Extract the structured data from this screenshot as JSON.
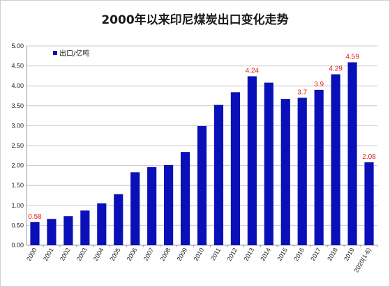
{
  "chart_data": {
    "type": "bar",
    "title": "2000年以来印尼煤炭出口变化走势",
    "xlabel": "",
    "ylabel": "",
    "ylim": [
      0,
      5.0
    ],
    "yticks": [
      "0.00",
      "0.50",
      "1.00",
      "1.50",
      "2.00",
      "2.50",
      "3.00",
      "3.50",
      "4.00",
      "4.50",
      "5.00"
    ],
    "grid": true,
    "legend_position": "top-left",
    "categories": [
      "2000",
      "2001",
      "2002",
      "2003",
      "2004",
      "2005",
      "2006",
      "2007",
      "2008",
      "2009",
      "2010",
      "2011",
      "2012",
      "2013",
      "2014",
      "2015",
      "2016",
      "2017",
      "2018",
      "2019",
      "2020(1-6)"
    ],
    "series": [
      {
        "name": "出口/亿吨",
        "color": "#0a10b8",
        "values": [
          0.58,
          0.66,
          0.73,
          0.87,
          1.05,
          1.28,
          1.83,
          1.96,
          2.01,
          2.34,
          2.99,
          3.52,
          3.84,
          4.24,
          4.08,
          3.67,
          3.7,
          3.9,
          4.29,
          4.59,
          2.08
        ]
      }
    ],
    "data_labels": [
      {
        "category": "2000",
        "text": "0.58"
      },
      {
        "category": "2013",
        "text": "4.24"
      },
      {
        "category": "2016",
        "text": "3.7"
      },
      {
        "category": "2017",
        "text": "3.9"
      },
      {
        "category": "2018",
        "text": "4.29"
      },
      {
        "category": "2019",
        "text": "4.59"
      },
      {
        "category": "2020(1-6)",
        "text": "2.08"
      }
    ]
  }
}
